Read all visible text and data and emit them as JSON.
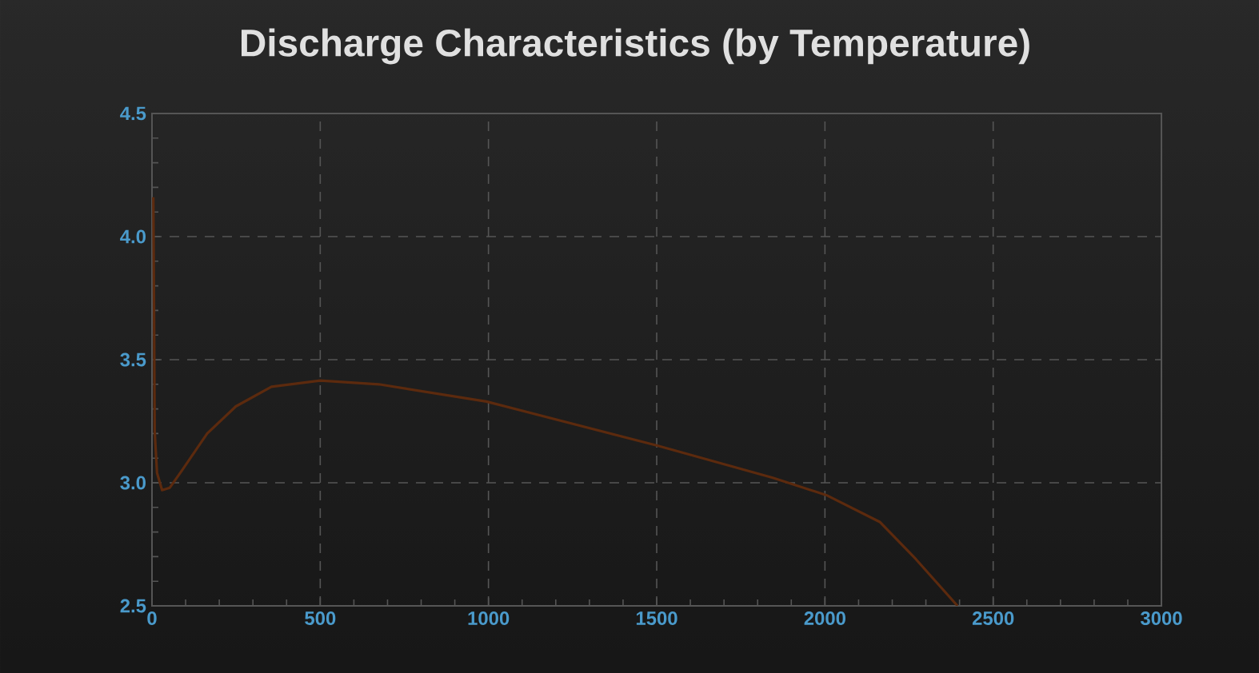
{
  "chart_data": {
    "type": "line",
    "title": "Discharge Characteristics (by Temperature)",
    "x": [
      4,
      6,
      8,
      15,
      30,
      53,
      89,
      164,
      249,
      355,
      500,
      674,
      994,
      1504,
      1845,
      2004,
      2164,
      2270,
      2394
    ],
    "series": [
      {
        "color": "#5c2a0e",
        "values": [
          4.16,
          3.73,
          3.21,
          3.04,
          2.97,
          2.98,
          3.05,
          3.2,
          3.31,
          3.39,
          3.415,
          3.4,
          3.33,
          3.15,
          3.02,
          2.95,
          2.84,
          2.69,
          2.5
        ]
      }
    ],
    "xlim": [
      0,
      3000
    ],
    "ylim": [
      2.5,
      4.5
    ],
    "xticks": [
      0,
      500,
      1000,
      1500,
      2000,
      2500,
      3000
    ],
    "yticks": [
      {
        "value": 2.5,
        "label": "2.5"
      },
      {
        "value": 3.0,
        "label": "3.0"
      },
      {
        "value": 3.5,
        "label": "3.5"
      },
      {
        "value": 4.0,
        "label": "4.0"
      },
      {
        "value": 4.5,
        "label": "4.5"
      }
    ],
    "grid": true,
    "marker": "none",
    "line_style": "solid"
  }
}
